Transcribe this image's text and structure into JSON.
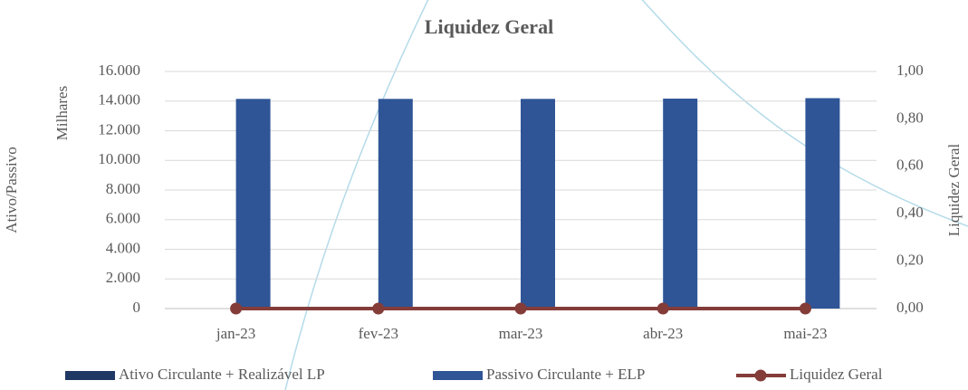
{
  "chart_data": {
    "type": "bar",
    "title": "Liquidez Geral",
    "y_axis_label": "Ativo/Passivo",
    "y_unit_label": "Milhares",
    "y2_axis_label": "Liquidez Geral",
    "categories": [
      "jan-23",
      "fev-23",
      "mar-23",
      "abr-23",
      "mai-23"
    ],
    "series": [
      {
        "name": "Ativo Circulante + Realizável LP",
        "type": "bar",
        "color": "#203864",
        "values": [
          0,
          0,
          0,
          0,
          0
        ]
      },
      {
        "name": "Passivo Circulante + ELP",
        "type": "bar",
        "color": "#2f5597",
        "values": [
          14150,
          14150,
          14150,
          14170,
          14200
        ]
      },
      {
        "name": "Liquidez Geral",
        "type": "line",
        "axis": "y2",
        "color": "#843c39",
        "values": [
          0,
          0,
          0,
          0,
          0
        ]
      }
    ],
    "ylim": [
      0,
      16000
    ],
    "yticks": [
      0,
      {
        "value": 2000,
        "label": "2.000"
      },
      {
        "value": 4000,
        "label": "4.000"
      },
      {
        "value": 6000,
        "label": "6.000"
      },
      {
        "value": 8000,
        "label": "8.000"
      },
      {
        "value": 10000,
        "label": "10.000"
      },
      {
        "value": 12000,
        "label": "12.000"
      },
      {
        "value": 14000,
        "label": "14.000"
      },
      {
        "value": 16000,
        "label": "16.000"
      }
    ],
    "y2lim": [
      0,
      1
    ],
    "y2ticks": [
      {
        "value": 0,
        "label": "0,00"
      },
      {
        "value": 0.2,
        "label": "0,20"
      },
      {
        "value": 0.4,
        "label": "0,40"
      },
      {
        "value": 0.6,
        "label": "0,60"
      },
      {
        "value": 0.8,
        "label": "0,80"
      },
      {
        "value": 1,
        "label": "1,00"
      }
    ],
    "grid": true,
    "legend": "bottom"
  }
}
